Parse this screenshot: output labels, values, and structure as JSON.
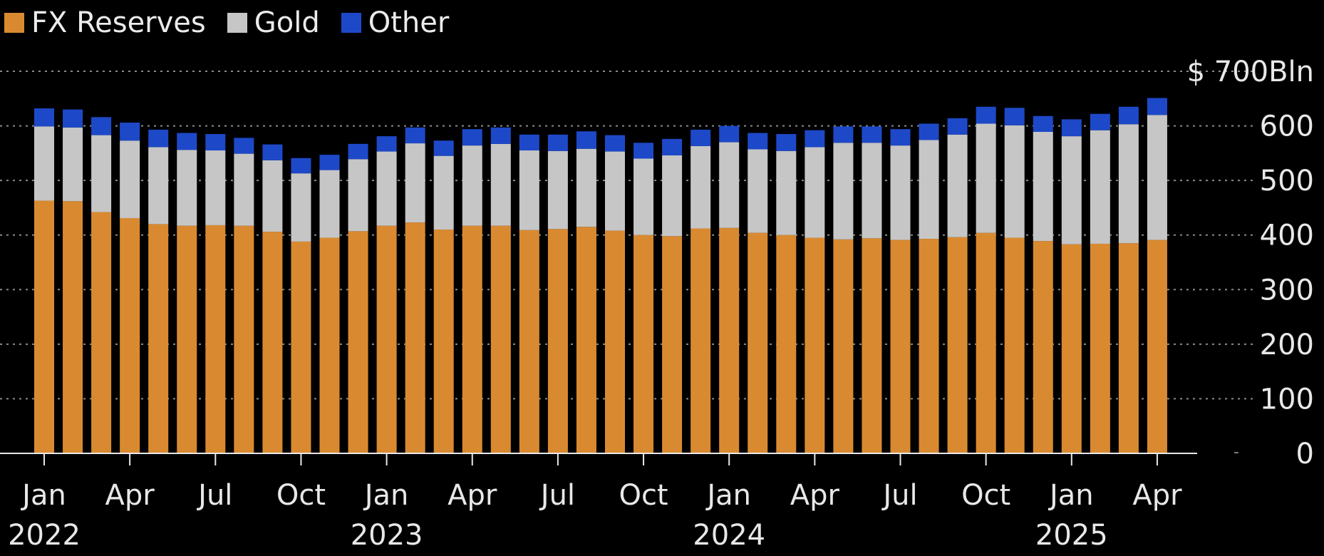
{
  "legend": {
    "items": [
      {
        "label": "FX Reserves",
        "color": "#d98a30"
      },
      {
        "label": "Gold",
        "color": "#c6c6c6"
      },
      {
        "label": "Other",
        "color": "#1d49c9"
      }
    ]
  },
  "chart_data": {
    "type": "bar",
    "stacked": true,
    "x": [
      "2022-01",
      "2022-02",
      "2022-03",
      "2022-04",
      "2022-05",
      "2022-06",
      "2022-07",
      "2022-08",
      "2022-09",
      "2022-10",
      "2022-11",
      "2022-12",
      "2023-01",
      "2023-02",
      "2023-03",
      "2023-04",
      "2023-05",
      "2023-06",
      "2023-07",
      "2023-08",
      "2023-09",
      "2023-10",
      "2023-11",
      "2023-12",
      "2024-01",
      "2024-02",
      "2024-03",
      "2024-04",
      "2024-05",
      "2024-06",
      "2024-07",
      "2024-08",
      "2024-09",
      "2024-10",
      "2024-11",
      "2024-12",
      "2025-01",
      "2025-02",
      "2025-03",
      "2025-04"
    ],
    "series": [
      {
        "name": "FX Reserves",
        "color": "#d98a30",
        "values": [
          463,
          462,
          442,
          431,
          420,
          417,
          418,
          417,
          406,
          388,
          395,
          407,
          417,
          423,
          410,
          417,
          417,
          409,
          411,
          415,
          408,
          400,
          398,
          412,
          413,
          404,
          400,
          395,
          392,
          394,
          391,
          393,
          396,
          404,
          395,
          389,
          383,
          384,
          385,
          391
        ]
      },
      {
        "name": "Gold",
        "color": "#c6c6c6",
        "values": [
          136,
          135,
          141,
          142,
          141,
          139,
          137,
          132,
          131,
          125,
          124,
          132,
          136,
          145,
          135,
          147,
          150,
          146,
          143,
          143,
          145,
          140,
          148,
          151,
          157,
          153,
          154,
          166,
          177,
          175,
          173,
          181,
          188,
          200,
          206,
          200,
          198,
          208,
          218,
          229
        ]
      },
      {
        "name": "Other",
        "color": "#1d49c9",
        "values": [
          33,
          33,
          33,
          33,
          32,
          31,
          30,
          29,
          29,
          28,
          28,
          28,
          28,
          29,
          28,
          30,
          30,
          29,
          30,
          32,
          30,
          29,
          30,
          30,
          30,
          30,
          31,
          31,
          30,
          30,
          30,
          30,
          30,
          31,
          32,
          29,
          31,
          30,
          32,
          31
        ]
      }
    ],
    "xlabel": "",
    "ylabel": "",
    "ylim": [
      0,
      700
    ],
    "yticks": [
      0,
      100,
      200,
      300,
      400,
      500,
      600,
      700
    ],
    "ytick_labels": [
      "0",
      "100",
      "200",
      "300",
      "400",
      "500",
      "600",
      "$ 700Bln"
    ],
    "xtick_labels": [
      {
        "month": "Jan",
        "year": "2022",
        "index": 0
      },
      {
        "month": "Apr",
        "year": "",
        "index": 3
      },
      {
        "month": "Jul",
        "year": "",
        "index": 6
      },
      {
        "month": "Oct",
        "year": "",
        "index": 9
      },
      {
        "month": "Jan",
        "year": "2023",
        "index": 12
      },
      {
        "month": "Apr",
        "year": "",
        "index": 15
      },
      {
        "month": "Jul",
        "year": "",
        "index": 18
      },
      {
        "month": "Oct",
        "year": "",
        "index": 21
      },
      {
        "month": "Jan",
        "year": "2024",
        "index": 24
      },
      {
        "month": "Apr",
        "year": "",
        "index": 27
      },
      {
        "month": "Jul",
        "year": "",
        "index": 30
      },
      {
        "month": "Oct",
        "year": "",
        "index": 33
      },
      {
        "month": "Jan",
        "year": "2025",
        "index": 36
      },
      {
        "month": "Apr",
        "year": "",
        "index": 39
      }
    ],
    "grid": true,
    "legend_position": "top-left"
  }
}
